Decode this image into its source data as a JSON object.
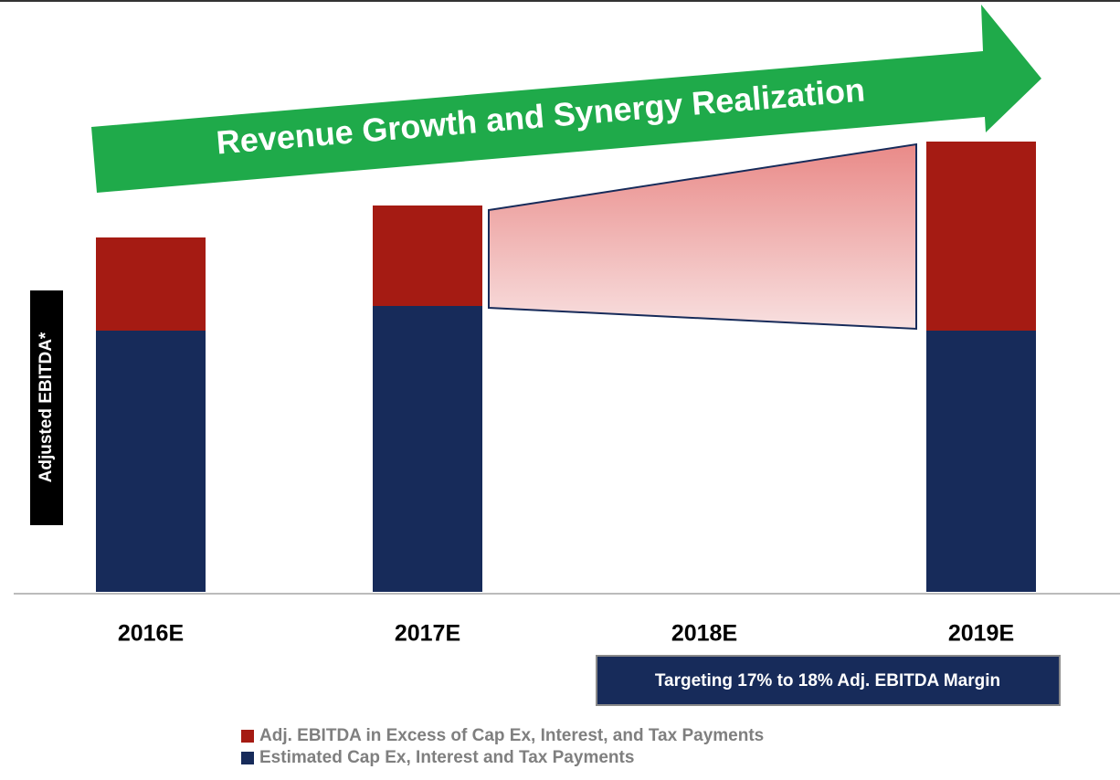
{
  "chart_data": {
    "type": "stacked_bar",
    "title": "Revenue Growth and Synergy Realization",
    "ylabel": "Adjusted EBITDA*",
    "annotation": "Targeting 17% to 18% Adj. EBITDA Margin",
    "categories": [
      "2016E",
      "2017E",
      "2018E",
      "2019E"
    ],
    "series": [
      {
        "name": "Adj. EBITDA in Excess of Cap Ex, Interest, and Tax Payments",
        "color": "#a51b13",
        "values": [
          102,
          110,
          null,
          207
        ]
      },
      {
        "name": "Estimated Cap Ex, Interest and Tax Payments",
        "color": "#172b5a",
        "values": [
          286,
          313,
          null,
          286
        ]
      }
    ],
    "ylim": [
      0,
      500
    ]
  }
}
